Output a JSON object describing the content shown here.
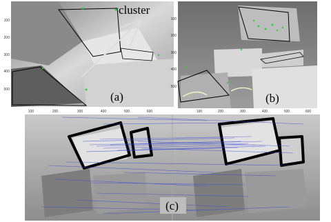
{
  "annotation": "cluster",
  "panels": [
    {
      "label": "(a)",
      "yticks": [
        "100",
        "200",
        "300",
        "400",
        "500"
      ],
      "xticks": [
        "100",
        "200",
        "300",
        "400",
        "500",
        "600"
      ]
    },
    {
      "label": "(b)",
      "yticks": [
        "100",
        "200",
        "300",
        "400",
        "500"
      ],
      "xticks": [
        "100",
        "200",
        "300",
        "400",
        "500",
        "600"
      ]
    },
    {
      "label": "(c)"
    }
  ]
}
